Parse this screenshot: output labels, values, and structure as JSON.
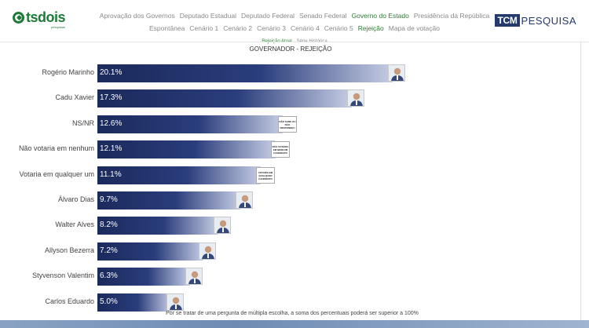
{
  "logo": {
    "name": "tsdois",
    "tagline": "pesquisas"
  },
  "brand": {
    "tcm": "TCM",
    "pesquisa": "PESQUISA"
  },
  "nav_primary": [
    {
      "label": "Aprovação dos Governos",
      "active": false
    },
    {
      "label": "Deputado Estadual",
      "active": false
    },
    {
      "label": "Deputado Federal",
      "active": false
    },
    {
      "label": "Senado Federal",
      "active": false
    },
    {
      "label": "Governo do Estado",
      "active": true
    },
    {
      "label": "Presidência da República",
      "active": false
    }
  ],
  "nav_secondary": [
    {
      "label": "Espontânea",
      "active": false
    },
    {
      "label": "Cenário 1",
      "active": false
    },
    {
      "label": "Cenário 2",
      "active": false
    },
    {
      "label": "Cenário 3",
      "active": false
    },
    {
      "label": "Cenário 4",
      "active": false
    },
    {
      "label": "Cenário 5",
      "active": false
    },
    {
      "label": "Rejeição",
      "active": true
    },
    {
      "label": "Mapa de votação",
      "active": false
    }
  ],
  "nav_tertiary": [
    {
      "label": "Rejeição Atual",
      "active": true
    },
    {
      "label": "Série Histórica",
      "active": false
    }
  ],
  "chart_title": "GOVERNADOR - REJEIÇÃO",
  "chart_data": {
    "type": "bar",
    "orientation": "horizontal",
    "title": "GOVERNADOR - REJEIÇÃO",
    "categories": [
      "Rogério Marinho",
      "Cadu Xavier",
      "NS/NR",
      "Não votaria em nenhum",
      "Votaria em qualquer um",
      "Álvaro Dias",
      "Walter Alves",
      "Allyson Bezerra",
      "Styvenson Valentim",
      "Carlos Eduardo"
    ],
    "values": [
      20.1,
      17.3,
      12.6,
      12.1,
      11.1,
      9.7,
      8.2,
      7.2,
      6.3,
      5.0
    ],
    "value_labels": [
      "20.1%",
      "17.3%",
      "12.6%",
      "12.1%",
      "11.1%",
      "9.7%",
      "8.2%",
      "7.2%",
      "6.3%",
      "5.0%"
    ],
    "markers": [
      "photo",
      "photo",
      "tag",
      "tag",
      "tag",
      "photo",
      "photo",
      "photo",
      "photo",
      "photo"
    ],
    "tags": [
      "",
      "",
      "NÃO SABE OU NÃO RESPONDEU",
      "NÃO VOTARIA EM NENHUM CANDIDATO",
      "VOTARIA EM QUALQUER CANDIDATO",
      "",
      "",
      "",
      "",
      ""
    ],
    "xlim": [
      0,
      22
    ],
    "grid": false,
    "colors": {
      "bar_start": "#1b2a5c",
      "bar_end": "#c6cde4"
    }
  },
  "footnote": "Por se tratar de uma pergunta de múltipla escolha, a soma dos percentuais poderá ser superior a 100%"
}
